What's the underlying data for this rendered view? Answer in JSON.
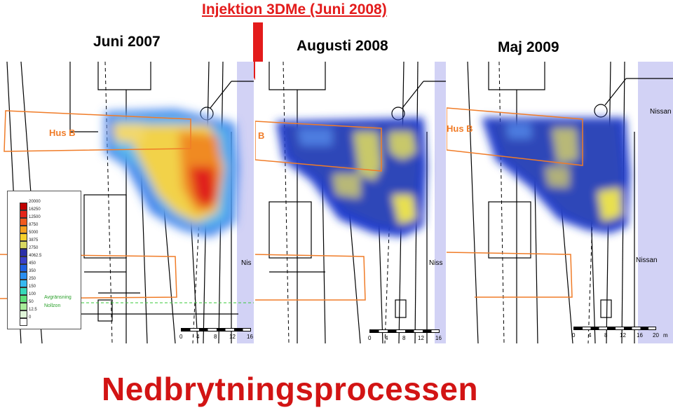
{
  "injection_label": "Injektion 3DMe (Juni 2008)",
  "panels": [
    {
      "title": "Juni 2007",
      "labels": {
        "hus": "Hus B",
        "nissan": "Nis"
      }
    },
    {
      "title": "Augusti 2008",
      "labels": {
        "hus": "B",
        "nissan": "Niss"
      }
    },
    {
      "title": "Maj 2009",
      "labels": {
        "hus": "Hus B",
        "nissan_top": "Nissan",
        "nissan": "Nissan"
      }
    }
  ],
  "legend": {
    "items": [
      {
        "value": "20000",
        "color": "#c00000"
      },
      {
        "value": "16250",
        "color": "#e3261a"
      },
      {
        "value": "12500",
        "color": "#f05a1e"
      },
      {
        "value": "8750",
        "color": "#f5a020"
      },
      {
        "value": "5000",
        "color": "#f6d02a"
      },
      {
        "value": "3875",
        "color": "#d8d860"
      },
      {
        "value": "2750",
        "color": "#2b2fa8"
      },
      {
        "value": "4062.5",
        "color": "#3a3fc8"
      },
      {
        "value": "450",
        "color": "#1f5fe0"
      },
      {
        "value": "350",
        "color": "#2a8ef0"
      },
      {
        "value": "250",
        "color": "#36b8f0"
      },
      {
        "value": "150",
        "color": "#36d8b8"
      },
      {
        "value": "100",
        "color": "#5ee07a"
      },
      {
        "value": "50",
        "color": "#a8ec9a"
      },
      {
        "value": "12.5",
        "color": "#dff5d8"
      },
      {
        "value": "0",
        "color": "#ffffff"
      }
    ],
    "side_labels": [
      "Avgränsning",
      "Nollzon"
    ]
  },
  "scale": {
    "ticks_a": [
      "0",
      "4",
      "8",
      "12",
      "16"
    ],
    "ticks_b": [
      "0",
      "4",
      "8",
      "12",
      "16",
      "20",
      "m"
    ]
  },
  "main_title": "Nedbrytningsprocessen"
}
